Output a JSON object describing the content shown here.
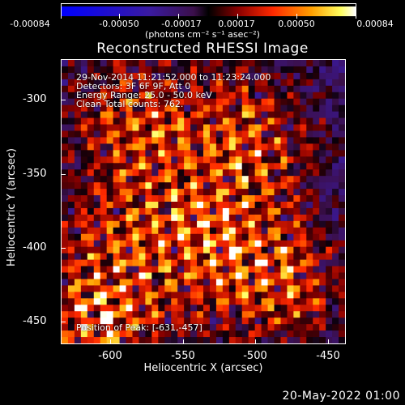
{
  "colorbar": {
    "tick_labels": [
      "-0.00084",
      "-0.00050",
      "-0.00017",
      "0.00017",
      "0.00050",
      "0.00084"
    ],
    "units": "(photons cm⁻² s⁻¹ asec⁻²)"
  },
  "title": "Reconstructed RHESSI Image",
  "overlay": {
    "time_range": "29-Nov-2014 11:21:52.000 to 11:23:24.000",
    "detectors": "Detectors: 3F 6F 9F, Att 0",
    "energy_range": "Energy Range: 25.0 - 50.0 keV",
    "clean_counts": "Clean    Total counts: 762.",
    "peak_position": "Position of Peak: [-631,-457]"
  },
  "axes": {
    "xlabel": "Heliocentric X (arcsec)",
    "ylabel": "Heliocentric Y (arcsec)",
    "x_ticks": [
      "-600",
      "-550",
      "-500",
      "-450"
    ],
    "y_ticks": [
      "-300",
      "-350",
      "-400",
      "-450"
    ]
  },
  "timestamp": "20-May-2022 01:00"
}
